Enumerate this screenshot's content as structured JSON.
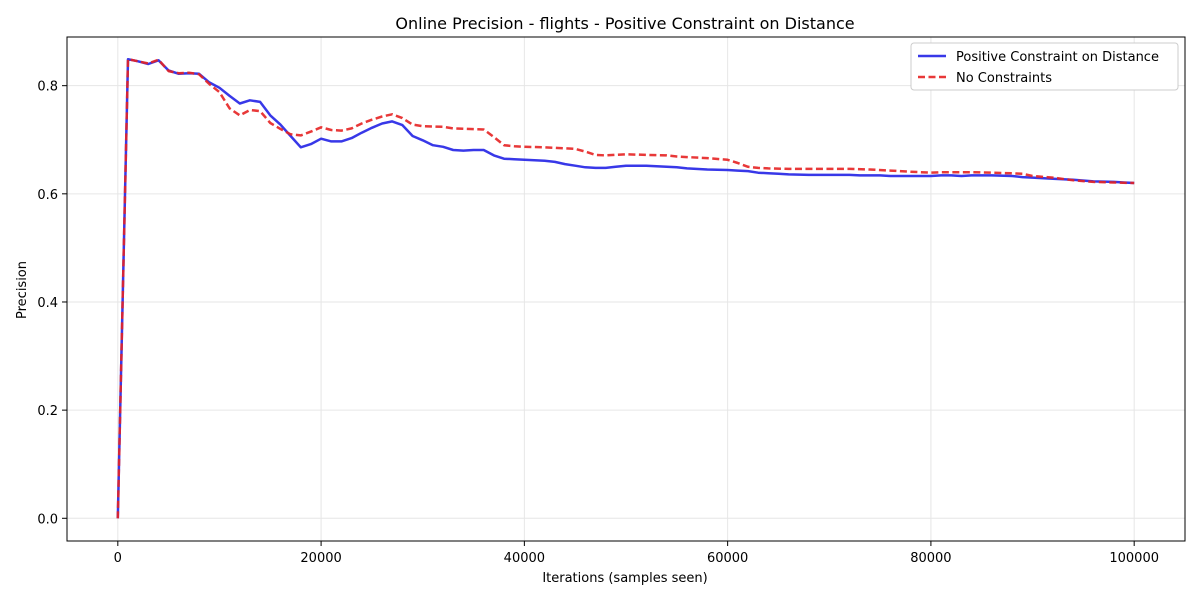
{
  "chart_data": {
    "type": "line",
    "title": "Online Precision - flights - Positive Constraint on Distance",
    "xlabel": "Iterations (samples seen)",
    "ylabel": "Precision",
    "xlim": [
      -5000,
      105000
    ],
    "ylim": [
      -0.042,
      0.89
    ],
    "xticks": [
      0,
      20000,
      40000,
      60000,
      80000,
      100000
    ],
    "yticks": [
      0.0,
      0.2,
      0.4,
      0.6,
      0.8
    ],
    "grid": true,
    "legend_position": "top-right",
    "series": [
      {
        "name": "Positive Constraint on Distance",
        "color": "#2222e6",
        "style": "solid",
        "x": [
          0,
          1000,
          2000,
          3000,
          4000,
          5000,
          6000,
          7000,
          8000,
          9000,
          10000,
          11000,
          12000,
          13000,
          14000,
          15000,
          16000,
          17000,
          18000,
          19000,
          20000,
          21000,
          22000,
          23000,
          24000,
          25000,
          26000,
          27000,
          28000,
          29000,
          30000,
          31000,
          32000,
          33000,
          34000,
          35000,
          36000,
          37000,
          38000,
          39000,
          40000,
          42000,
          43000,
          44000,
          45000,
          46000,
          47000,
          48000,
          49000,
          50000,
          52000,
          53000,
          54000,
          55000,
          56000,
          58000,
          60000,
          61000,
          62000,
          63000,
          64000,
          65000,
          66000,
          68000,
          70000,
          72000,
          73000,
          74000,
          75000,
          76000,
          78000,
          80000,
          81000,
          82000,
          83000,
          84000,
          86000,
          88000,
          89000,
          90000,
          92000,
          94000,
          96000,
          98000,
          99000,
          100000
        ],
        "y": [
          0.0,
          0.849,
          0.845,
          0.84,
          0.847,
          0.828,
          0.822,
          0.823,
          0.822,
          0.806,
          0.796,
          0.781,
          0.767,
          0.773,
          0.77,
          0.745,
          0.728,
          0.707,
          0.686,
          0.692,
          0.702,
          0.697,
          0.697,
          0.703,
          0.713,
          0.722,
          0.73,
          0.734,
          0.727,
          0.707,
          0.699,
          0.69,
          0.687,
          0.681,
          0.68,
          0.681,
          0.681,
          0.671,
          0.665,
          0.664,
          0.663,
          0.661,
          0.659,
          0.655,
          0.652,
          0.649,
          0.648,
          0.648,
          0.65,
          0.652,
          0.652,
          0.651,
          0.65,
          0.649,
          0.647,
          0.645,
          0.644,
          0.643,
          0.642,
          0.639,
          0.638,
          0.637,
          0.636,
          0.635,
          0.635,
          0.635,
          0.634,
          0.634,
          0.634,
          0.633,
          0.633,
          0.633,
          0.634,
          0.634,
          0.633,
          0.634,
          0.634,
          0.633,
          0.631,
          0.63,
          0.628,
          0.626,
          0.623,
          0.622,
          0.621,
          0.62
        ]
      },
      {
        "name": "No Constraints",
        "color": "#e62222",
        "style": "dashed",
        "x": [
          0,
          1000,
          2000,
          3000,
          4000,
          5000,
          6000,
          7000,
          8000,
          9000,
          10000,
          11000,
          12000,
          13000,
          14000,
          15000,
          16000,
          17000,
          18000,
          19000,
          20000,
          21000,
          22000,
          23000,
          24000,
          25000,
          26000,
          27000,
          28000,
          29000,
          30000,
          32000,
          33000,
          36000,
          37000,
          38000,
          39000,
          40000,
          42000,
          45000,
          46000,
          47000,
          48000,
          50000,
          52000,
          54000,
          55000,
          56000,
          58000,
          60000,
          61000,
          62000,
          63000,
          64000,
          66000,
          68000,
          70000,
          72000,
          74000,
          76000,
          78000,
          80000,
          81000,
          82000,
          84000,
          86000,
          88000,
          89000,
          90000,
          92000,
          94000,
          96000,
          98000,
          100000
        ],
        "y": [
          0.0,
          0.849,
          0.845,
          0.841,
          0.848,
          0.827,
          0.823,
          0.824,
          0.821,
          0.803,
          0.788,
          0.758,
          0.745,
          0.755,
          0.753,
          0.731,
          0.72,
          0.71,
          0.708,
          0.715,
          0.723,
          0.718,
          0.717,
          0.721,
          0.73,
          0.737,
          0.743,
          0.747,
          0.74,
          0.728,
          0.725,
          0.724,
          0.721,
          0.719,
          0.705,
          0.69,
          0.688,
          0.687,
          0.686,
          0.683,
          0.678,
          0.672,
          0.671,
          0.673,
          0.672,
          0.671,
          0.669,
          0.668,
          0.666,
          0.663,
          0.657,
          0.65,
          0.648,
          0.647,
          0.646,
          0.646,
          0.646,
          0.646,
          0.645,
          0.643,
          0.641,
          0.639,
          0.64,
          0.64,
          0.64,
          0.639,
          0.638,
          0.637,
          0.633,
          0.63,
          0.625,
          0.622,
          0.621,
          0.62
        ]
      }
    ]
  }
}
